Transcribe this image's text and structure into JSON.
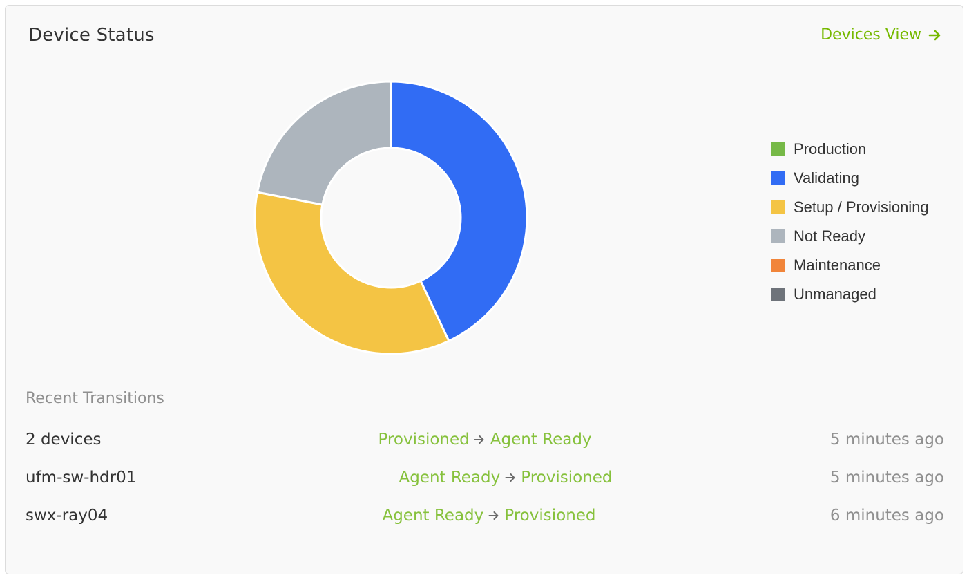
{
  "header": {
    "title": "Device Status",
    "devices_view_label": "Devices View"
  },
  "chart_data": {
    "type": "pie",
    "categories": [
      "Production",
      "Validating",
      "Setup / Provisioning",
      "Not Ready",
      "Maintenance",
      "Unmanaged"
    ],
    "values": [
      0,
      43,
      35,
      22,
      0,
      0
    ],
    "colors": [
      "#76b947",
      "#316cf4",
      "#f4c444",
      "#adb5bd",
      "#f1853a",
      "#6e737a"
    ],
    "legend_position": "right",
    "donut": true
  },
  "transitions": {
    "title": "Recent Transitions",
    "rows": [
      {
        "device": "2 devices",
        "from": "Provisioned",
        "to": "Agent Ready",
        "time": "5 minutes ago"
      },
      {
        "device": "ufm-sw-hdr01",
        "from": "Agent Ready",
        "to": "Provisioned",
        "time": "5 minutes ago"
      },
      {
        "device": "swx-ray04",
        "from": "Agent Ready",
        "to": "Provisioned",
        "time": "6 minutes ago"
      }
    ]
  },
  "icons": {
    "devices_view": "arrow-right-icon",
    "transition": "arrow-right-icon"
  }
}
